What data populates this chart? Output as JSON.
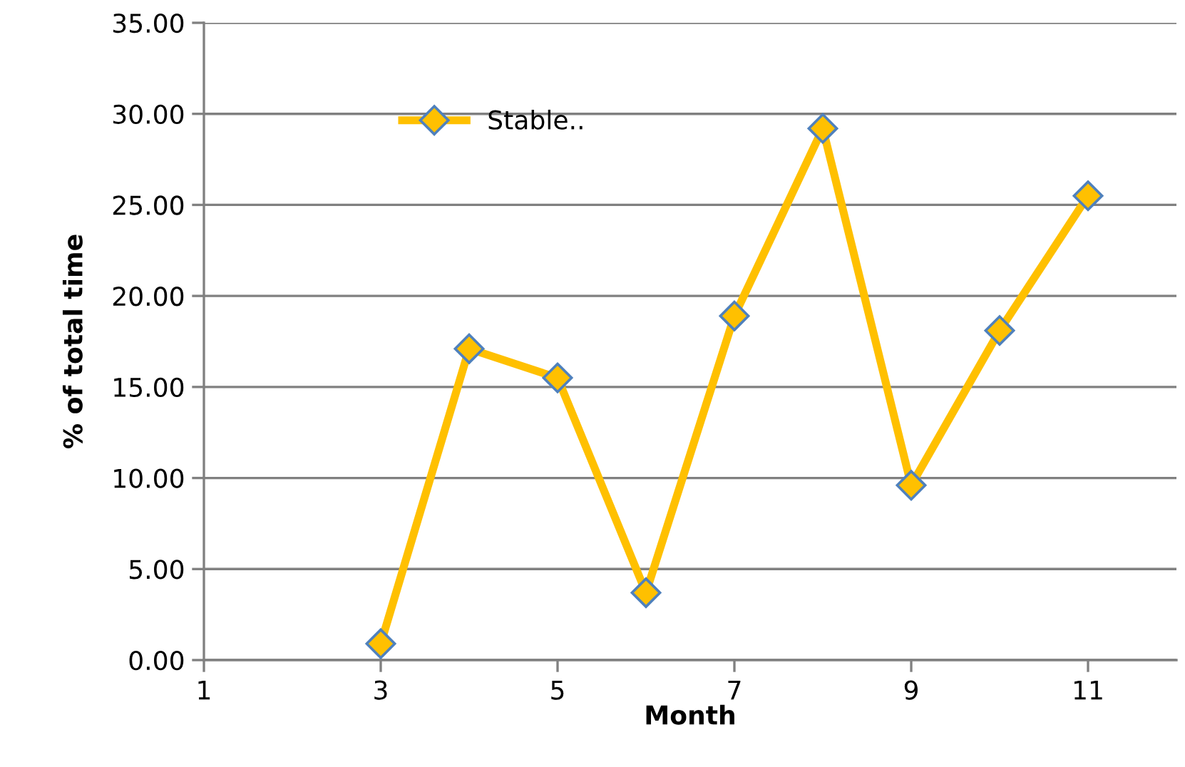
{
  "chart_data": {
    "type": "line",
    "xlabel": "Month",
    "ylabel": "% of total time",
    "x": [
      3,
      4,
      5,
      6,
      7,
      8,
      9,
      10,
      11
    ],
    "series": [
      {
        "name": "Stable..",
        "color": "#ffc000",
        "values": [
          0.9,
          17.1,
          15.5,
          3.7,
          18.9,
          29.2,
          9.6,
          18.1,
          25.5
        ]
      }
    ],
    "xlim": [
      1,
      12
    ],
    "xticks": [
      1,
      3,
      5,
      7,
      9,
      11
    ],
    "ylim": [
      0,
      35
    ],
    "yticks": [
      {
        "value": 0,
        "label": "0.00"
      },
      {
        "value": 5,
        "label": "5.00"
      },
      {
        "value": 10,
        "label": "10.00"
      },
      {
        "value": 15,
        "label": "15.00"
      },
      {
        "value": 20,
        "label": "20.00"
      },
      {
        "value": 25,
        "label": "25.00"
      },
      {
        "value": 30,
        "label": "30.00"
      },
      {
        "value": 35,
        "label": "35.00"
      }
    ],
    "grid": "y",
    "legend": "top left",
    "marker": "diamond",
    "line_style": "solid"
  }
}
